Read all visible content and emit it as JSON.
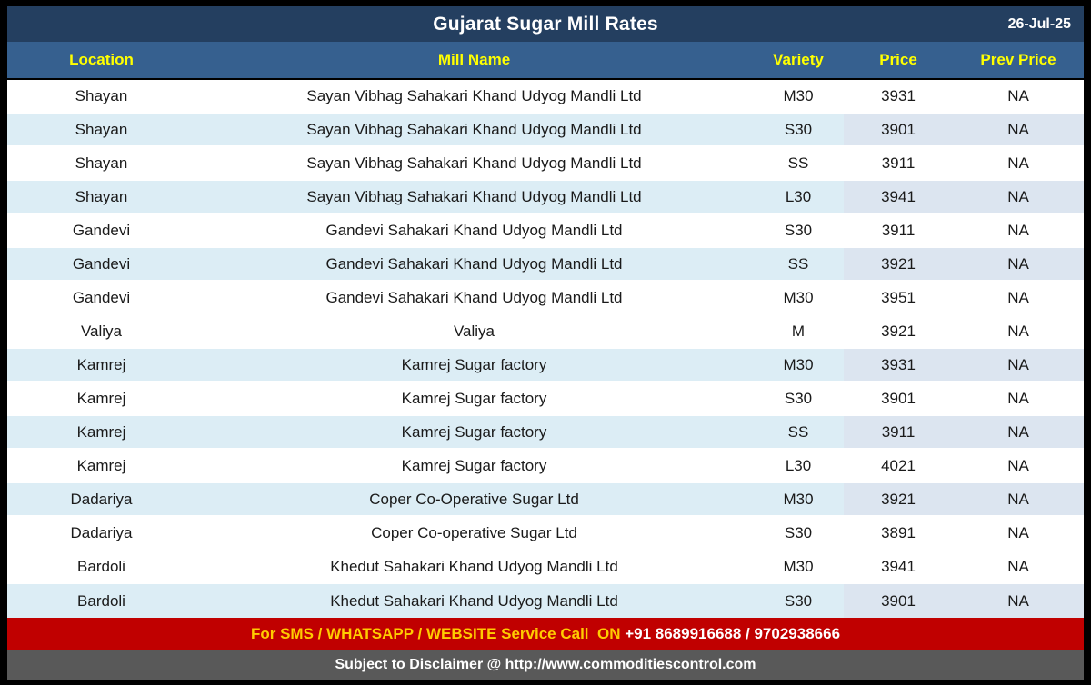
{
  "title_bar": {
    "title": "Gujarat Sugar Mill Rates",
    "date": "26-Jul-25"
  },
  "table": {
    "columns": [
      "Location",
      "Mill Name",
      "Variety",
      "Price",
      "Prev Price"
    ],
    "rows": [
      {
        "location": "Shayan",
        "mill": "Sayan Vibhag Sahakari Khand Udyog Mandli Ltd",
        "variety": "M30",
        "price": "3931",
        "prev_price": "NA",
        "shaded": false
      },
      {
        "location": "Shayan",
        "mill": "Sayan Vibhag Sahakari Khand Udyog Mandli Ltd",
        "variety": "S30",
        "price": "3901",
        "prev_price": "NA",
        "shaded": true
      },
      {
        "location": "Shayan",
        "mill": "Sayan Vibhag Sahakari Khand Udyog Mandli Ltd",
        "variety": "SS",
        "price": "3911",
        "prev_price": "NA",
        "shaded": false
      },
      {
        "location": "Shayan",
        "mill": "Sayan Vibhag Sahakari Khand Udyog Mandli Ltd",
        "variety": "L30",
        "price": "3941",
        "prev_price": "NA",
        "shaded": true
      },
      {
        "location": "Gandevi",
        "mill": "Gandevi Sahakari Khand Udyog Mandli Ltd",
        "variety": "S30",
        "price": "3911",
        "prev_price": "NA",
        "shaded": false
      },
      {
        "location": "Gandevi",
        "mill": "Gandevi Sahakari Khand Udyog Mandli Ltd",
        "variety": "SS",
        "price": "3921",
        "prev_price": "NA",
        "shaded": true
      },
      {
        "location": "Gandevi",
        "mill": "Gandevi Sahakari Khand Udyog Mandli Ltd",
        "variety": "M30",
        "price": "3951",
        "prev_price": "NA",
        "shaded": false
      },
      {
        "location": "Valiya",
        "mill": "Valiya",
        "variety": "M",
        "price": "3921",
        "prev_price": "NA",
        "shaded": false
      },
      {
        "location": "Kamrej",
        "mill": "Kamrej Sugar factory",
        "variety": "M30",
        "price": "3931",
        "prev_price": "NA",
        "shaded": true
      },
      {
        "location": "Kamrej",
        "mill": "Kamrej Sugar factory",
        "variety": "S30",
        "price": "3901",
        "prev_price": "NA",
        "shaded": false
      },
      {
        "location": "Kamrej",
        "mill": "Kamrej Sugar factory",
        "variety": "SS",
        "price": "3911",
        "prev_price": "NA",
        "shaded": true
      },
      {
        "location": "Kamrej",
        "mill": "Kamrej Sugar factory",
        "variety": "L30",
        "price": "4021",
        "prev_price": "NA",
        "shaded": false
      },
      {
        "location": "Dadariya",
        "mill": "Coper Co-Operative Sugar Ltd",
        "variety": "M30",
        "price": "3921",
        "prev_price": "NA",
        "shaded": true
      },
      {
        "location": "Dadariya",
        "mill": "Coper Co-operative Sugar Ltd",
        "variety": "S30",
        "price": "3891",
        "prev_price": "NA",
        "shaded": false
      },
      {
        "location": "Bardoli",
        "mill": "Khedut Sahakari Khand Udyog Mandli Ltd",
        "variety": "M30",
        "price": "3941",
        "prev_price": "NA",
        "shaded": false
      },
      {
        "location": "Bardoli",
        "mill": "Khedut Sahakari Khand Udyog Mandli Ltd",
        "variety": "S30",
        "price": "3901",
        "prev_price": "NA",
        "shaded": true
      }
    ]
  },
  "footer": {
    "service_label": "For SMS / WHATSAPP / WEBSITE Service Call  ON ",
    "service_numbers": "+91 8689916688 / 9702938666",
    "disclaimer": "Subject to Disclaimer @  http://www.commoditiescontrol.com"
  },
  "colors": {
    "title_bg": "#243F60",
    "header_bg": "#36608F",
    "header_fg": "#FFFF00",
    "shade_main": "#DCEDF5",
    "shade_price": "#DCE5F0",
    "sms_bg": "#C00000",
    "sms_yellow": "#FFCC00",
    "disclaimer_bg": "#595959"
  }
}
